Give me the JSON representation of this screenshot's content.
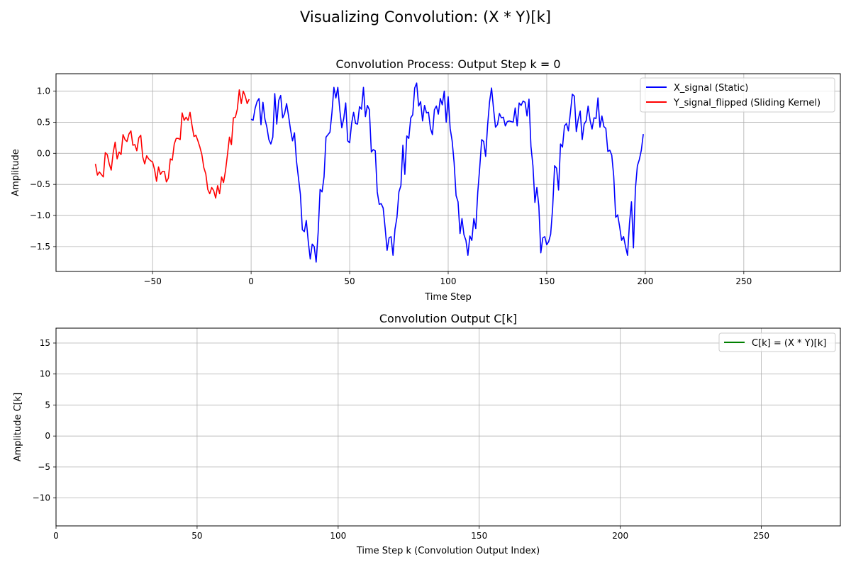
{
  "figure": {
    "suptitle": "Visualizing Convolution: (X * Y)[k]"
  },
  "chart_data": [
    {
      "type": "line",
      "title": "Convolution Process: Output Step k = 0",
      "xlabel": "Time Step",
      "ylabel": "Amplitude",
      "xlim": [
        -99,
        299
      ],
      "ylim": [
        -1.9,
        1.28
      ],
      "xticks": [
        -50,
        0,
        50,
        100,
        150,
        200,
        250
      ],
      "xtick_labels": [
        "−50",
        "0",
        "50",
        "100",
        "150",
        "200",
        "250"
      ],
      "yticks": [
        -1.5,
        -1.0,
        -0.5,
        0.0,
        0.5,
        1.0
      ],
      "ytick_labels": [
        "−1.5",
        "−1.0",
        "−0.5",
        "0.0",
        "0.5",
        "1.0"
      ],
      "grid": true,
      "legend_position": "top-right",
      "series": [
        {
          "name": "X_signal (Static)",
          "color": "#0000ff",
          "x_start": 0,
          "x_step": 1,
          "values": [
            0.55,
            0.53,
            0.72,
            0.83,
            0.88,
            0.46,
            0.82,
            0.55,
            0.42,
            0.22,
            0.15,
            0.26,
            0.96,
            0.47,
            0.85,
            0.93,
            0.57,
            0.64,
            0.8,
            0.6,
            0.38,
            0.2,
            0.33,
            -0.12,
            -0.39,
            -0.66,
            -1.23,
            -1.26,
            -1.08,
            -1.42,
            -1.7,
            -1.46,
            -1.5,
            -1.75,
            -1.28,
            -0.58,
            -0.62,
            -0.38,
            0.26,
            0.3,
            0.34,
            0.65,
            1.06,
            0.89,
            1.06,
            0.7,
            0.41,
            0.56,
            0.81,
            0.2,
            0.17,
            0.48,
            0.66,
            0.48,
            0.47,
            0.75,
            0.71,
            1.06,
            0.59,
            0.77,
            0.7,
            0.02,
            0.06,
            0.04,
            -0.62,
            -0.82,
            -0.81,
            -0.88,
            -1.2,
            -1.56,
            -1.36,
            -1.34,
            -1.64,
            -1.22,
            -1.03,
            -0.62,
            -0.52,
            0.13,
            -0.34,
            0.28,
            0.24,
            0.57,
            0.62,
            1.05,
            1.13,
            0.76,
            0.83,
            0.52,
            0.77,
            0.65,
            0.66,
            0.4,
            0.3,
            0.7,
            0.76,
            0.63,
            0.88,
            0.78,
            1.0,
            0.5,
            0.91,
            0.4,
            0.2,
            -0.15,
            -0.68,
            -0.78,
            -1.29,
            -1.05,
            -1.31,
            -1.4,
            -1.64,
            -1.33,
            -1.4,
            -1.05,
            -1.21,
            -0.63,
            -0.23,
            0.22,
            0.19,
            -0.05,
            0.45,
            0.83,
            1.05,
            0.72,
            0.42,
            0.46,
            0.64,
            0.57,
            0.58,
            0.44,
            0.51,
            0.52,
            0.51,
            0.5,
            0.73,
            0.44,
            0.81,
            0.77,
            0.84,
            0.82,
            0.6,
            0.87,
            0.11,
            -0.2,
            -0.79,
            -0.55,
            -0.85,
            -1.6,
            -1.36,
            -1.34,
            -1.47,
            -1.42,
            -1.3,
            -0.88,
            -0.2,
            -0.24,
            -0.59,
            0.15,
            0.1,
            0.44,
            0.48,
            0.36,
            0.65,
            0.95,
            0.92,
            0.35,
            0.55,
            0.68,
            0.22,
            0.47,
            0.52,
            0.76,
            0.53,
            0.39,
            0.57,
            0.56,
            0.89,
            0.42,
            0.6,
            0.43,
            0.4,
            0.03,
            0.05,
            -0.03,
            -0.37,
            -1.03,
            -0.99,
            -1.18,
            -1.4,
            -1.34,
            -1.5,
            -1.64,
            -1.12,
            -0.78,
            -1.52,
            -0.57,
            -0.2,
            -0.1,
            0.05,
            0.31
          ]
        },
        {
          "name": "Y_signal_flipped (Sliding Kernel)",
          "color": "#ff0000",
          "x_start": -79,
          "x_step": 1,
          "values": [
            -0.17,
            -0.35,
            -0.3,
            -0.34,
            -0.38,
            0.01,
            -0.02,
            -0.17,
            -0.27,
            0.01,
            0.18,
            -0.09,
            0.02,
            -0.02,
            0.3,
            0.22,
            0.19,
            0.31,
            0.36,
            0.13,
            0.14,
            0.04,
            0.25,
            0.29,
            -0.06,
            -0.17,
            -0.04,
            -0.09,
            -0.12,
            -0.14,
            -0.26,
            -0.45,
            -0.22,
            -0.34,
            -0.29,
            -0.29,
            -0.46,
            -0.4,
            -0.09,
            -0.11,
            0.15,
            0.24,
            0.24,
            0.22,
            0.65,
            0.53,
            0.58,
            0.53,
            0.66,
            0.45,
            0.27,
            0.29,
            0.2,
            0.1,
            -0.02,
            -0.23,
            -0.33,
            -0.58,
            -0.65,
            -0.55,
            -0.6,
            -0.72,
            -0.52,
            -0.65,
            -0.38,
            -0.47,
            -0.28,
            -0.02,
            0.26,
            0.14,
            0.57,
            0.58,
            0.71,
            1.02,
            0.8,
            1.0,
            0.92,
            0.8,
            0.87
          ]
        }
      ]
    },
    {
      "type": "line",
      "title": "Convolution Output C[k]",
      "xlabel": "Time Step k (Convolution Output Index)",
      "ylabel": "Amplitude C[k]",
      "xlim": [
        0,
        278
      ],
      "ylim": [
        -14.5,
        17.4
      ],
      "xticks": [
        0,
        50,
        100,
        150,
        200,
        250
      ],
      "xtick_labels": [
        "0",
        "50",
        "100",
        "150",
        "200",
        "250"
      ],
      "yticks": [
        -10,
        -5,
        0,
        5,
        10,
        15
      ],
      "ytick_labels": [
        "−10",
        "−5",
        "0",
        "5",
        "10",
        "15"
      ],
      "grid": true,
      "legend_position": "top-right",
      "series": [
        {
          "name": "C[k] = (X * Y)[k]",
          "color": "#008000",
          "x_start": 0,
          "x_step": 1,
          "values": []
        }
      ]
    }
  ]
}
